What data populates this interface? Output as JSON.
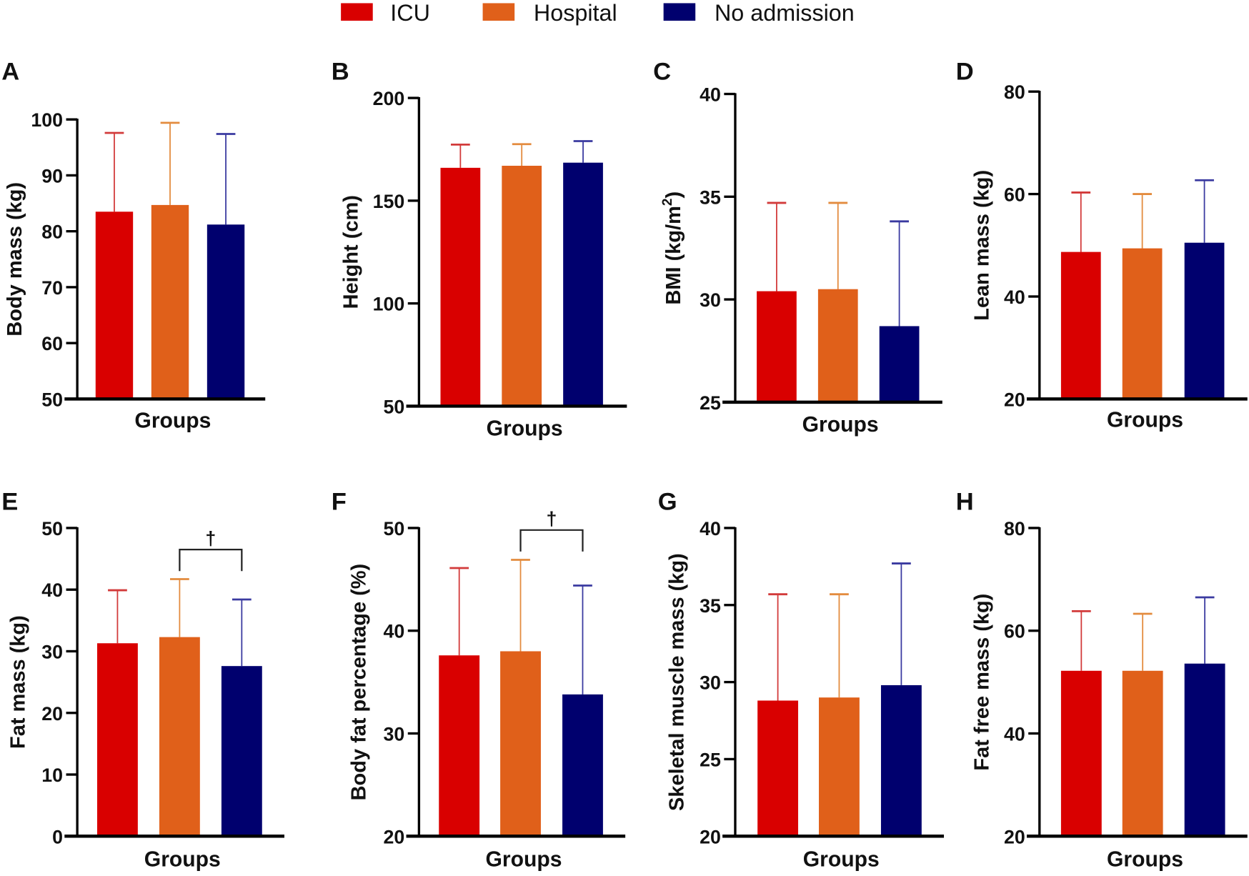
{
  "legend": [
    {
      "label": "ICU",
      "color": "#d90000",
      "error_color": "#d23a3a"
    },
    {
      "label": "Hospital",
      "color": "#e0601a",
      "error_color": "#e38b3e"
    },
    {
      "label": "No admission",
      "color": "#00006e",
      "error_color": "#3a3aa0"
    }
  ],
  "chart_data": [
    {
      "panel": "A",
      "type": "bar",
      "xlabel": "Groups",
      "ylabel": "Body mass (kg)",
      "ylim": [
        50,
        100
      ],
      "yticks": [
        50,
        60,
        70,
        80,
        90,
        100
      ],
      "series": [
        {
          "name": "ICU",
          "mean": 83.5,
          "sd_top": 97.6
        },
        {
          "name": "Hospital",
          "mean": 84.7,
          "sd_top": 99.4
        },
        {
          "name": "No admission",
          "mean": 81.2,
          "sd_top": 97.4
        }
      ]
    },
    {
      "panel": "B",
      "type": "bar",
      "xlabel": "Groups",
      "ylabel": "Height (cm)",
      "ylim": [
        50,
        200
      ],
      "yticks": [
        50,
        100,
        150,
        200
      ],
      "series": [
        {
          "name": "ICU",
          "mean": 166,
          "sd_top": 177.3
        },
        {
          "name": "Hospital",
          "mean": 167,
          "sd_top": 177.5
        },
        {
          "name": "No admission",
          "mean": 168.5,
          "sd_top": 179
        }
      ]
    },
    {
      "panel": "C",
      "type": "bar",
      "xlabel": "Groups",
      "ylabel": "BMI (kg/m",
      "ylabel_sup": "2",
      "ylabel_end": ")",
      "ylim": [
        25,
        40
      ],
      "yticks": [
        25,
        30,
        35,
        40
      ],
      "series": [
        {
          "name": "ICU",
          "mean": 30.4,
          "sd_top": 34.7
        },
        {
          "name": "Hospital",
          "mean": 30.5,
          "sd_top": 34.7
        },
        {
          "name": "No admission",
          "mean": 28.7,
          "sd_top": 33.8
        }
      ]
    },
    {
      "panel": "D",
      "type": "bar",
      "xlabel": "Groups",
      "ylabel": "Lean mass (kg)",
      "ylim": [
        20,
        80
      ],
      "yticks": [
        20,
        40,
        60,
        80
      ],
      "series": [
        {
          "name": "ICU",
          "mean": 48.7,
          "sd_top": 60.3
        },
        {
          "name": "Hospital",
          "mean": 49.4,
          "sd_top": 60.0
        },
        {
          "name": "No admission",
          "mean": 50.5,
          "sd_top": 62.7
        }
      ]
    },
    {
      "panel": "E",
      "type": "bar",
      "xlabel": "Groups",
      "ylabel": "Fat mass (kg)",
      "ylim": [
        0,
        50
      ],
      "yticks": [
        0,
        10,
        20,
        30,
        40,
        50
      ],
      "series": [
        {
          "name": "ICU",
          "mean": 31.3,
          "sd_top": 39.9
        },
        {
          "name": "Hospital",
          "mean": 32.3,
          "sd_top": 41.7
        },
        {
          "name": "No admission",
          "mean": 27.6,
          "sd_top": 38.4
        }
      ],
      "significance": {
        "between": [
          "Hospital",
          "No admission"
        ],
        "symbol": "†",
        "level": 46.5
      }
    },
    {
      "panel": "F",
      "type": "bar",
      "xlabel": "Groups",
      "ylabel": "Body fat percentage (%)",
      "ylim": [
        20,
        50
      ],
      "yticks": [
        20,
        30,
        40,
        50
      ],
      "series": [
        {
          "name": "ICU",
          "mean": 37.6,
          "sd_top": 46.1
        },
        {
          "name": "Hospital",
          "mean": 38.0,
          "sd_top": 46.9
        },
        {
          "name": "No admission",
          "mean": 33.8,
          "sd_top": 44.4
        }
      ],
      "significance": {
        "between": [
          "Hospital",
          "No admission"
        ],
        "symbol": "†",
        "level": 49.8
      }
    },
    {
      "panel": "G",
      "type": "bar",
      "xlabel": "Groups",
      "ylabel": "Skeletal muscle mass (kg)",
      "ylim": [
        20,
        40
      ],
      "yticks": [
        20,
        25,
        30,
        35,
        40
      ],
      "series": [
        {
          "name": "ICU",
          "mean": 28.8,
          "sd_top": 35.7
        },
        {
          "name": "Hospital",
          "mean": 29.0,
          "sd_top": 35.7
        },
        {
          "name": "No admission",
          "mean": 29.8,
          "sd_top": 37.7
        }
      ]
    },
    {
      "panel": "H",
      "type": "bar",
      "xlabel": "Groups",
      "ylabel": "Fat free mass (kg)",
      "ylim": [
        20,
        80
      ],
      "yticks": [
        20,
        40,
        60,
        80
      ],
      "series": [
        {
          "name": "ICU",
          "mean": 52.2,
          "sd_top": 63.8
        },
        {
          "name": "Hospital",
          "mean": 52.2,
          "sd_top": 63.3
        },
        {
          "name": "No admission",
          "mean": 53.6,
          "sd_top": 66.5
        }
      ]
    }
  ]
}
